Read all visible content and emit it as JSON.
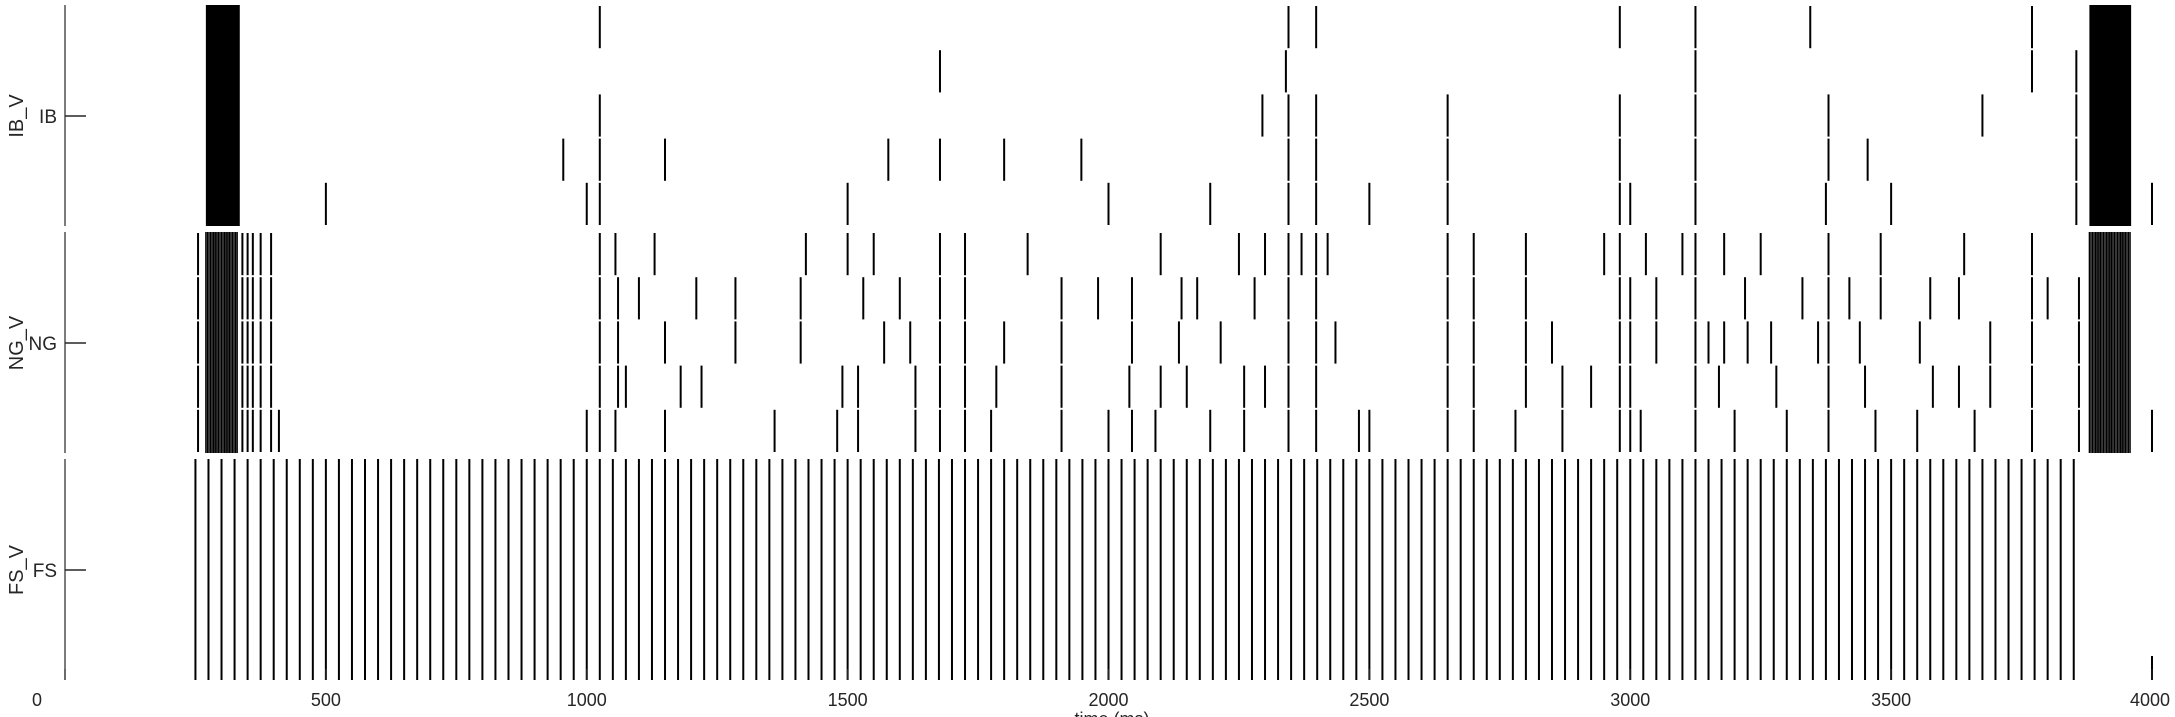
{
  "chart_data": {
    "type": "raster",
    "xlabel": "time (ms)",
    "xlim": [
      0,
      4000
    ],
    "x_ticks": [
      "0",
      "500",
      "1000",
      "1500",
      "2000",
      "2500",
      "3000",
      "3500",
      "4000"
    ],
    "tick_direction": "in",
    "grid": false,
    "box": false,
    "colors": {
      "spike": "#000000",
      "axis": "#262626"
    },
    "panels": [
      {
        "ylabel": "IB_V",
        "ytick": "IB",
        "rows": 5,
        "blocks": [
          {
            "start": 270,
            "end": 335
          },
          {
            "start": 3880,
            "end": 3960
          }
        ],
        "spikes": [
          [
            1025,
            2345,
            2398,
            2980,
            3125,
            3345,
            3770
          ],
          [
            1677,
            2340,
            3125,
            3770,
            3855
          ],
          [
            1025,
            2295,
            2345,
            2398,
            2650,
            2980,
            3125,
            3380,
            3675,
            3855
          ],
          [
            955,
            1025,
            1150,
            1578,
            1677,
            1800,
            1948,
            2345,
            2398,
            2650,
            2980,
            3125,
            3380,
            3455,
            3855
          ],
          [
            500,
            1000,
            1025,
            1500,
            2000,
            2195,
            2345,
            2398,
            2500,
            2650,
            2980,
            3000,
            3125,
            3375,
            3500,
            3855,
            4000
          ]
        ]
      },
      {
        "ylabel": "NG_V",
        "ytick": "NG",
        "rows": 5,
        "blocks": [
          {
            "start": 270,
            "end": 330,
            "dense": true
          },
          {
            "start": 3880,
            "end": 3960,
            "dense": true
          }
        ],
        "spikes": [
          [
            255,
            340,
            350,
            360,
            375,
            395,
            1025,
            1055,
            1130,
            1420,
            1500,
            1550,
            1677,
            1725,
            1845,
            2100,
            2250,
            2300,
            2345,
            2370,
            2398,
            2420,
            2650,
            2700,
            2800,
            2950,
            2980,
            3030,
            3100,
            3125,
            3180,
            3250,
            3380,
            3480,
            3640,
            3770
          ],
          [
            255,
            340,
            350,
            360,
            375,
            395,
            1025,
            1060,
            1100,
            1210,
            1285,
            1410,
            1530,
            1600,
            1677,
            1725,
            1910,
            1980,
            2045,
            2140,
            2170,
            2280,
            2345,
            2398,
            2650,
            2700,
            2800,
            2980,
            3000,
            3050,
            3125,
            3220,
            3330,
            3380,
            3420,
            3480,
            3575,
            3630,
            3770,
            3800,
            3860
          ],
          [
            255,
            340,
            350,
            360,
            375,
            395,
            1025,
            1060,
            1150,
            1285,
            1410,
            1570,
            1620,
            1677,
            1725,
            1800,
            1910,
            2045,
            2135,
            2215,
            2345,
            2398,
            2435,
            2650,
            2700,
            2800,
            2850,
            2980,
            3000,
            3050,
            3125,
            3150,
            3180,
            3225,
            3270,
            3360,
            3380,
            3440,
            3555,
            3690,
            3770,
            3860
          ],
          [
            255,
            340,
            350,
            360,
            375,
            395,
            1025,
            1060,
            1075,
            1180,
            1220,
            1490,
            1520,
            1630,
            1677,
            1725,
            1785,
            1910,
            2040,
            2100,
            2150,
            2260,
            2300,
            2345,
            2398,
            2650,
            2700,
            2800,
            2870,
            2925,
            2980,
            3000,
            3125,
            3170,
            3280,
            3380,
            3450,
            3580,
            3630,
            3690,
            3770,
            3860
          ],
          [
            255,
            340,
            350,
            360,
            375,
            395,
            410,
            1000,
            1025,
            1055,
            1150,
            1360,
            1480,
            1520,
            1630,
            1677,
            1725,
            1775,
            1910,
            2000,
            2045,
            2090,
            2195,
            2260,
            2345,
            2398,
            2480,
            2500,
            2650,
            2700,
            2780,
            2870,
            2980,
            3000,
            3020,
            3125,
            3200,
            3300,
            3380,
            3470,
            3550,
            3660,
            3770,
            3860,
            4000
          ]
        ]
      },
      {
        "ylabel": "FS_V",
        "ytick": "FS",
        "rows": 1,
        "regular": {
          "start": 250,
          "end": 3850,
          "period": 25
        },
        "extra_spikes": [
          4000
        ]
      }
    ]
  }
}
